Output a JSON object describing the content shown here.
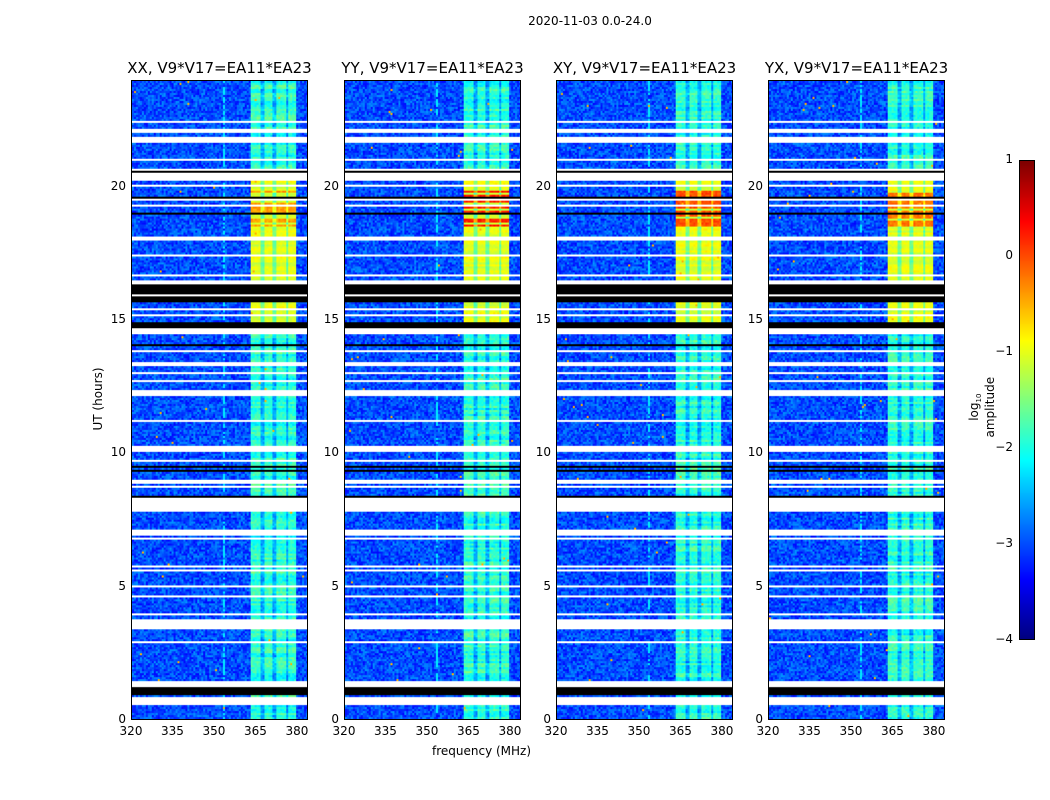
{
  "chart_data": {
    "type": "heatmap",
    "title": "2020-11-03 0.0-24.0",
    "xlabel": "frequency (MHz)",
    "ylabel": "UT (hours)",
    "xlim": [
      320,
      384
    ],
    "ylim": [
      0,
      24
    ],
    "xticks": [
      "320",
      "335",
      "350",
      "365",
      "380"
    ],
    "xtick_values": [
      320,
      335,
      350,
      365,
      380
    ],
    "yticks": [
      "0",
      "5",
      "10",
      "15",
      "20"
    ],
    "ytick_values": [
      0,
      5,
      10,
      15,
      20
    ],
    "panels": [
      {
        "title": "XX, V9*V17=EA11*EA23",
        "hot_level": -0.4
      },
      {
        "title": "YY, V9*V17=EA11*EA23",
        "hot_level": 0.2
      },
      {
        "title": "XY, V9*V17=EA11*EA23",
        "hot_level": 0.0
      },
      {
        "title": "YX, V9*V17=EA11*EA23",
        "hot_level": -0.2
      }
    ],
    "background_level": -3.0,
    "rfi_band_MHz": [
      363,
      380
    ],
    "rfi_band_level": -1.9,
    "bright_interval_UT": [
      14.5,
      20.5
    ],
    "bright_interval_level": -1.0,
    "hot_interval_UT": [
      18.6,
      19.9
    ],
    "flagged_blank_UT": [
      [
        20.3,
        20.6
      ],
      [
        14.55,
        14.75
      ],
      [
        8.1,
        8.35
      ],
      [
        3.45,
        3.8
      ],
      [
        0.55,
        0.85
      ]
    ],
    "flagged_zero_UT": [
      [
        20.6,
        20.75
      ],
      [
        14.75,
        15.0
      ],
      [
        15.7,
        16.5
      ],
      [
        8.0,
        8.1
      ],
      [
        8.35,
        8.45
      ],
      [
        0.95,
        1.4
      ]
    ],
    "colorbar": {
      "label": "log10 amplitude",
      "label_main": "log",
      "label_sub": "10",
      "label_rest": " amplitude",
      "range": [
        -4,
        1
      ],
      "ticks": [
        "1",
        "0",
        "−1",
        "−2",
        "−3",
        "−4"
      ],
      "tick_values": [
        1,
        0,
        -1,
        -2,
        -3,
        -4
      ],
      "colormap": "jet"
    }
  }
}
